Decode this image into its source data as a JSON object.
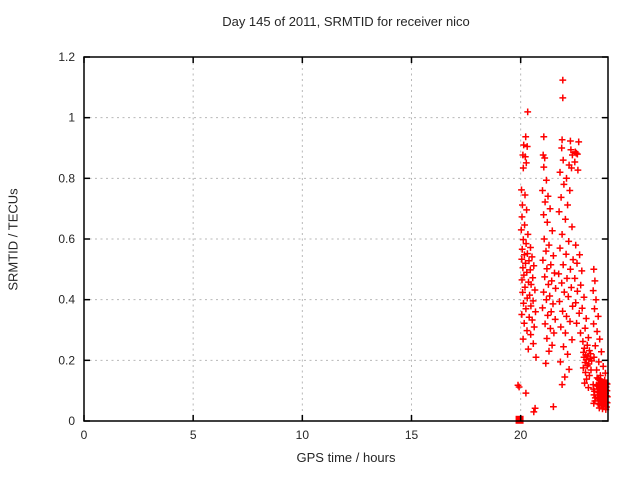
{
  "title": "Day 145 of 2011, SRMTID for receiver nico",
  "colors": {
    "marker": "#ff0000",
    "grid": "#b8b8b8",
    "border": "#000000",
    "text": "#262626",
    "background": "#ffffff"
  },
  "chart_data": {
    "type": "scatter",
    "title": "Day 145 of 2011, SRMTID for receiver nico",
    "xlabel": "GPS time / hours",
    "ylabel": "SRMTID / TECUs",
    "xlim": [
      0,
      24
    ],
    "ylim": [
      0,
      1.2
    ],
    "x_ticks": [
      {
        "v": 0,
        "label": "0"
      },
      {
        "v": 5,
        "label": "5"
      },
      {
        "v": 10,
        "label": "10"
      },
      {
        "v": 15,
        "label": "15"
      },
      {
        "v": 20,
        "label": "20"
      }
    ],
    "y_ticks": [
      {
        "v": 0,
        "label": "0"
      },
      {
        "v": 0.2,
        "label": "0.2"
      },
      {
        "v": 0.4,
        "label": "0.4"
      },
      {
        "v": 0.6,
        "label": "0.6"
      },
      {
        "v": 0.8,
        "label": "0.8"
      },
      {
        "v": 1.0,
        "label": "1"
      },
      {
        "v": 1.2,
        "label": "1.2"
      }
    ],
    "grid": true,
    "legend": "none",
    "marker": "plus",
    "square_point": [
      19.95,
      0.004
    ],
    "points": [
      [
        20.32,
        1.019
      ],
      [
        20.23,
        0.937
      ],
      [
        20.14,
        0.91
      ],
      [
        20.3,
        0.905
      ],
      [
        20.1,
        0.877
      ],
      [
        20.21,
        0.871
      ],
      [
        20.26,
        0.851
      ],
      [
        20.12,
        0.834
      ],
      [
        20.04,
        0.762
      ],
      [
        20.2,
        0.745
      ],
      [
        20.08,
        0.712
      ],
      [
        20.27,
        0.696
      ],
      [
        20.06,
        0.673
      ],
      [
        20.18,
        0.646
      ],
      [
        20.03,
        0.63
      ],
      [
        20.33,
        0.615
      ],
      [
        20.12,
        0.598
      ],
      [
        20.25,
        0.585
      ],
      [
        20.45,
        0.572
      ],
      [
        20.07,
        0.566
      ],
      [
        20.31,
        0.552
      ],
      [
        20.17,
        0.548
      ],
      [
        20.52,
        0.541
      ],
      [
        20.05,
        0.533
      ],
      [
        20.38,
        0.528
      ],
      [
        20.22,
        0.52
      ],
      [
        20.6,
        0.512
      ],
      [
        20.1,
        0.505
      ],
      [
        20.44,
        0.498
      ],
      [
        20.28,
        0.49
      ],
      [
        20.15,
        0.481
      ],
      [
        20.55,
        0.472
      ],
      [
        20.06,
        0.465
      ],
      [
        20.36,
        0.458
      ],
      [
        20.48,
        0.45
      ],
      [
        20.2,
        0.441
      ],
      [
        20.65,
        0.432
      ],
      [
        20.09,
        0.424
      ],
      [
        20.41,
        0.415
      ],
      [
        20.3,
        0.405
      ],
      [
        20.57,
        0.396
      ],
      [
        20.13,
        0.388
      ],
      [
        20.47,
        0.379
      ],
      [
        20.24,
        0.37
      ],
      [
        20.68,
        0.36
      ],
      [
        20.05,
        0.351
      ],
      [
        20.39,
        0.342
      ],
      [
        20.53,
        0.333
      ],
      [
        20.16,
        0.322
      ],
      [
        20.62,
        0.31
      ],
      [
        20.29,
        0.298
      ],
      [
        20.46,
        0.285
      ],
      [
        20.11,
        0.27
      ],
      [
        20.58,
        0.255
      ],
      [
        20.35,
        0.237
      ],
      [
        20.7,
        0.21
      ],
      [
        19.88,
        0.118
      ],
      [
        19.93,
        0.112
      ],
      [
        20.24,
        0.092
      ],
      [
        20.66,
        0.042
      ],
      [
        20.6,
        0.03
      ],
      [
        21.06,
        0.937
      ],
      [
        21.03,
        0.877
      ],
      [
        21.1,
        0.867
      ],
      [
        21.06,
        0.837
      ],
      [
        21.18,
        0.794
      ],
      [
        21.0,
        0.76
      ],
      [
        21.25,
        0.741
      ],
      [
        21.12,
        0.722
      ],
      [
        21.35,
        0.7
      ],
      [
        21.05,
        0.68
      ],
      [
        21.22,
        0.655
      ],
      [
        21.45,
        0.627
      ],
      [
        21.08,
        0.6
      ],
      [
        21.3,
        0.58
      ],
      [
        21.16,
        0.56
      ],
      [
        21.5,
        0.545
      ],
      [
        21.02,
        0.53
      ],
      [
        21.38,
        0.515
      ],
      [
        21.2,
        0.502
      ],
      [
        21.55,
        0.488
      ],
      [
        21.1,
        0.475
      ],
      [
        21.42,
        0.462
      ],
      [
        21.27,
        0.45
      ],
      [
        21.6,
        0.437
      ],
      [
        21.05,
        0.425
      ],
      [
        21.33,
        0.412
      ],
      [
        21.18,
        0.4
      ],
      [
        21.48,
        0.386
      ],
      [
        21.0,
        0.373
      ],
      [
        21.4,
        0.36
      ],
      [
        21.24,
        0.348
      ],
      [
        21.58,
        0.335
      ],
      [
        21.12,
        0.32
      ],
      [
        21.36,
        0.305
      ],
      [
        21.52,
        0.29
      ],
      [
        21.2,
        0.272
      ],
      [
        21.44,
        0.25
      ],
      [
        21.3,
        0.23
      ],
      [
        21.15,
        0.19
      ],
      [
        21.5,
        0.047
      ],
      [
        21.93,
        1.124
      ],
      [
        21.93,
        1.065
      ],
      [
        21.9,
        0.927
      ],
      [
        22.28,
        0.923
      ],
      [
        21.88,
        0.9
      ],
      [
        22.3,
        0.894
      ],
      [
        22.37,
        0.877
      ],
      [
        21.95,
        0.86
      ],
      [
        22.22,
        0.844
      ],
      [
        22.33,
        0.834
      ],
      [
        21.8,
        0.82
      ],
      [
        22.1,
        0.8
      ],
      [
        21.98,
        0.78
      ],
      [
        22.25,
        0.76
      ],
      [
        21.85,
        0.737
      ],
      [
        22.15,
        0.712
      ],
      [
        21.76,
        0.69
      ],
      [
        22.05,
        0.665
      ],
      [
        22.35,
        0.64
      ],
      [
        21.9,
        0.615
      ],
      [
        22.2,
        0.592
      ],
      [
        21.8,
        0.57
      ],
      [
        22.08,
        0.55
      ],
      [
        22.4,
        0.532
      ],
      [
        21.95,
        0.515
      ],
      [
        22.28,
        0.5
      ],
      [
        21.74,
        0.485
      ],
      [
        22.12,
        0.47
      ],
      [
        21.88,
        0.455
      ],
      [
        22.32,
        0.44
      ],
      [
        22.0,
        0.425
      ],
      [
        22.18,
        0.41
      ],
      [
        21.78,
        0.394
      ],
      [
        22.38,
        0.378
      ],
      [
        21.92,
        0.362
      ],
      [
        22.1,
        0.345
      ],
      [
        22.26,
        0.328
      ],
      [
        21.84,
        0.31
      ],
      [
        22.05,
        0.29
      ],
      [
        22.35,
        0.268
      ],
      [
        21.96,
        0.245
      ],
      [
        22.15,
        0.22
      ],
      [
        21.82,
        0.195
      ],
      [
        22.22,
        0.17
      ],
      [
        22.02,
        0.145
      ],
      [
        21.9,
        0.12
      ],
      [
        22.66,
        0.92
      ],
      [
        22.5,
        0.887
      ],
      [
        22.55,
        0.883
      ],
      [
        22.6,
        0.88
      ],
      [
        22.48,
        0.854
      ],
      [
        22.62,
        0.827
      ],
      [
        22.52,
        0.58
      ],
      [
        22.7,
        0.548
      ],
      [
        22.58,
        0.52
      ],
      [
        22.8,
        0.495
      ],
      [
        22.48,
        0.47
      ],
      [
        22.75,
        0.448
      ],
      [
        22.6,
        0.428
      ],
      [
        22.9,
        0.408
      ],
      [
        22.52,
        0.39
      ],
      [
        22.82,
        0.372
      ],
      [
        22.68,
        0.355
      ],
      [
        23.0,
        0.338
      ],
      [
        22.56,
        0.322
      ],
      [
        22.95,
        0.306
      ],
      [
        22.74,
        0.29
      ],
      [
        23.1,
        0.275
      ],
      [
        22.85,
        0.262
      ],
      [
        23.05,
        0.25
      ],
      [
        22.92,
        0.24
      ],
      [
        23.15,
        0.232
      ],
      [
        22.88,
        0.226
      ],
      [
        23.2,
        0.222
      ],
      [
        22.98,
        0.218
      ],
      [
        23.08,
        0.214
      ],
      [
        22.9,
        0.21
      ],
      [
        23.18,
        0.206
      ],
      [
        23.0,
        0.202
      ],
      [
        23.25,
        0.198
      ],
      [
        22.95,
        0.193
      ],
      [
        23.12,
        0.188
      ],
      [
        23.05,
        0.182
      ],
      [
        22.87,
        0.175
      ],
      [
        23.22,
        0.168
      ],
      [
        22.97,
        0.16
      ],
      [
        23.15,
        0.15
      ],
      [
        23.02,
        0.138
      ],
      [
        22.93,
        0.125
      ],
      [
        23.1,
        0.11
      ],
      [
        23.35,
        0.5
      ],
      [
        23.4,
        0.462
      ],
      [
        23.32,
        0.43
      ],
      [
        23.45,
        0.4
      ],
      [
        23.38,
        0.37
      ],
      [
        23.55,
        0.345
      ],
      [
        23.34,
        0.32
      ],
      [
        23.5,
        0.295
      ],
      [
        23.62,
        0.27
      ],
      [
        23.42,
        0.248
      ],
      [
        23.7,
        0.228
      ],
      [
        23.36,
        0.21
      ],
      [
        23.58,
        0.195
      ],
      [
        23.78,
        0.18
      ],
      [
        23.48,
        0.168
      ],
      [
        23.88,
        0.158
      ],
      [
        23.65,
        0.15
      ],
      [
        23.5,
        0.142
      ],
      [
        23.56,
        0.138
      ],
      [
        23.62,
        0.135
      ],
      [
        23.68,
        0.132
      ],
      [
        23.74,
        0.13
      ],
      [
        23.8,
        0.128
      ],
      [
        23.86,
        0.126
      ],
      [
        23.92,
        0.124
      ],
      [
        23.96,
        0.122
      ],
      [
        23.48,
        0.118
      ],
      [
        23.54,
        0.115
      ],
      [
        23.6,
        0.112
      ],
      [
        23.66,
        0.11
      ],
      [
        23.72,
        0.108
      ],
      [
        23.78,
        0.106
      ],
      [
        23.84,
        0.104
      ],
      [
        23.9,
        0.102
      ],
      [
        23.95,
        0.1
      ],
      [
        23.52,
        0.097
      ],
      [
        23.58,
        0.094
      ],
      [
        23.64,
        0.092
      ],
      [
        23.7,
        0.09
      ],
      [
        23.76,
        0.088
      ],
      [
        23.82,
        0.086
      ],
      [
        23.88,
        0.084
      ],
      [
        23.94,
        0.082
      ],
      [
        23.97,
        0.08
      ],
      [
        23.5,
        0.077
      ],
      [
        23.56,
        0.074
      ],
      [
        23.62,
        0.072
      ],
      [
        23.68,
        0.07
      ],
      [
        23.74,
        0.068
      ],
      [
        23.8,
        0.066
      ],
      [
        23.86,
        0.064
      ],
      [
        23.92,
        0.062
      ],
      [
        23.96,
        0.06
      ],
      [
        23.55,
        0.057
      ],
      [
        23.63,
        0.054
      ],
      [
        23.71,
        0.052
      ],
      [
        23.79,
        0.05
      ],
      [
        23.87,
        0.048
      ],
      [
        23.93,
        0.046
      ],
      [
        23.6,
        0.043
      ],
      [
        23.75,
        0.04
      ],
      [
        23.9,
        0.038
      ],
      [
        23.67,
        0.085
      ],
      [
        23.73,
        0.095
      ],
      [
        23.81,
        0.115
      ],
      [
        23.89,
        0.092
      ],
      [
        23.59,
        0.125
      ],
      [
        23.85,
        0.135
      ],
      [
        23.34,
        0.105
      ],
      [
        23.36,
        0.086
      ],
      [
        23.4,
        0.066
      ],
      [
        23.69,
        0.12
      ],
      [
        23.91,
        0.112
      ],
      [
        23.77,
        0.078
      ],
      [
        23.83,
        0.058
      ],
      [
        23.32,
        0.12
      ],
      [
        23.38,
        0.098
      ],
      [
        23.42,
        0.076
      ],
      [
        23.35,
        0.058
      ]
    ]
  }
}
